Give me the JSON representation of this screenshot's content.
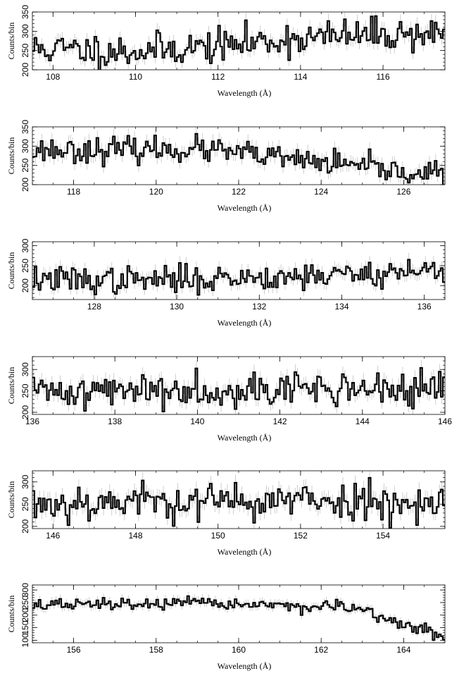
{
  "chart_data": [
    {
      "type": "line",
      "xlabel": "Wavelength (Å)",
      "ylabel": "Counts/bin",
      "xlim": [
        107.5,
        117.5
      ],
      "ylim": [
        200,
        350
      ],
      "xticks": [
        108,
        110,
        112,
        114,
        116
      ],
      "yticks": [
        200,
        250,
        300,
        350
      ],
      "trend": [
        [
          107.5,
          255
        ],
        [
          110,
          248
        ],
        [
          112,
          262
        ],
        [
          114,
          282
        ],
        [
          116,
          292
        ],
        [
          117.5,
          295
        ]
      ],
      "noise": 22,
      "seed": 11
    },
    {
      "type": "line",
      "xlabel": "Wavelength (Å)",
      "ylabel": "Counts/bin",
      "xlim": [
        117,
        127
      ],
      "ylim": [
        200,
        350
      ],
      "xticks": [
        118,
        120,
        122,
        124,
        126
      ],
      "yticks": [
        200,
        250,
        300,
        350
      ],
      "trend": [
        [
          117,
          290
        ],
        [
          119,
          290
        ],
        [
          121,
          292
        ],
        [
          122,
          282
        ],
        [
          123,
          268
        ],
        [
          124,
          258
        ],
        [
          125,
          245
        ],
        [
          126,
          232
        ],
        [
          127,
          228
        ]
      ],
      "noise": 16,
      "seed": 23
    },
    {
      "type": "line",
      "xlabel": "Wavelength (Å)",
      "ylabel": "Counts/bin",
      "xlim": [
        126.5,
        136.5
      ],
      "ylim": [
        165,
        310
      ],
      "xticks": [
        128,
        130,
        132,
        134,
        136
      ],
      "yticks": [
        200,
        250,
        300
      ],
      "trend": [
        [
          126.5,
          215
        ],
        [
          129,
          213
        ],
        [
          131,
          218
        ],
        [
          133,
          225
        ],
        [
          135,
          232
        ],
        [
          136.5,
          240
        ]
      ],
      "noise": 17,
      "seed": 37
    },
    {
      "type": "line",
      "xlabel": "Wavelength (Å)",
      "ylabel": "Counts/bin",
      "xlim": [
        136,
        146
      ],
      "ylim": [
        195,
        330
      ],
      "xticks": [
        136,
        138,
        140,
        142,
        144,
        146
      ],
      "yticks": [
        200,
        250,
        300
      ],
      "trend": [
        [
          136,
          248
        ],
        [
          140,
          254
        ],
        [
          144,
          255
        ],
        [
          146,
          250
        ]
      ],
      "noise": 20,
      "seed": 41
    },
    {
      "type": "line",
      "xlabel": "Wavelength (Å)",
      "ylabel": "Counts/bin",
      "xlim": [
        145.5,
        155.5
      ],
      "ylim": [
        195,
        325
      ],
      "xticks": [
        146,
        148,
        150,
        152,
        154
      ],
      "yticks": [
        200,
        250,
        300
      ],
      "trend": [
        [
          145.5,
          250
        ],
        [
          148,
          258
        ],
        [
          150,
          255
        ],
        [
          152,
          258
        ],
        [
          155.5,
          255
        ]
      ],
      "noise": 21,
      "seed": 53
    },
    {
      "type": "line",
      "xlabel": "Wavelength (Å)",
      "ylabel": "Counts/bin",
      "xlim": [
        155,
        165
      ],
      "ylim": [
        90,
        320
      ],
      "xticks": [
        156,
        158,
        160,
        162,
        164
      ],
      "yticks": [
        100,
        150,
        200,
        250,
        300
      ],
      "trend": [
        [
          155,
          240
        ],
        [
          158,
          245
        ],
        [
          160,
          245
        ],
        [
          162,
          232
        ],
        [
          162.8,
          228
        ],
        [
          163.5,
          185
        ],
        [
          164,
          165
        ],
        [
          164.5,
          140
        ],
        [
          165,
          110
        ]
      ],
      "noise": 12,
      "seed": 67
    }
  ]
}
